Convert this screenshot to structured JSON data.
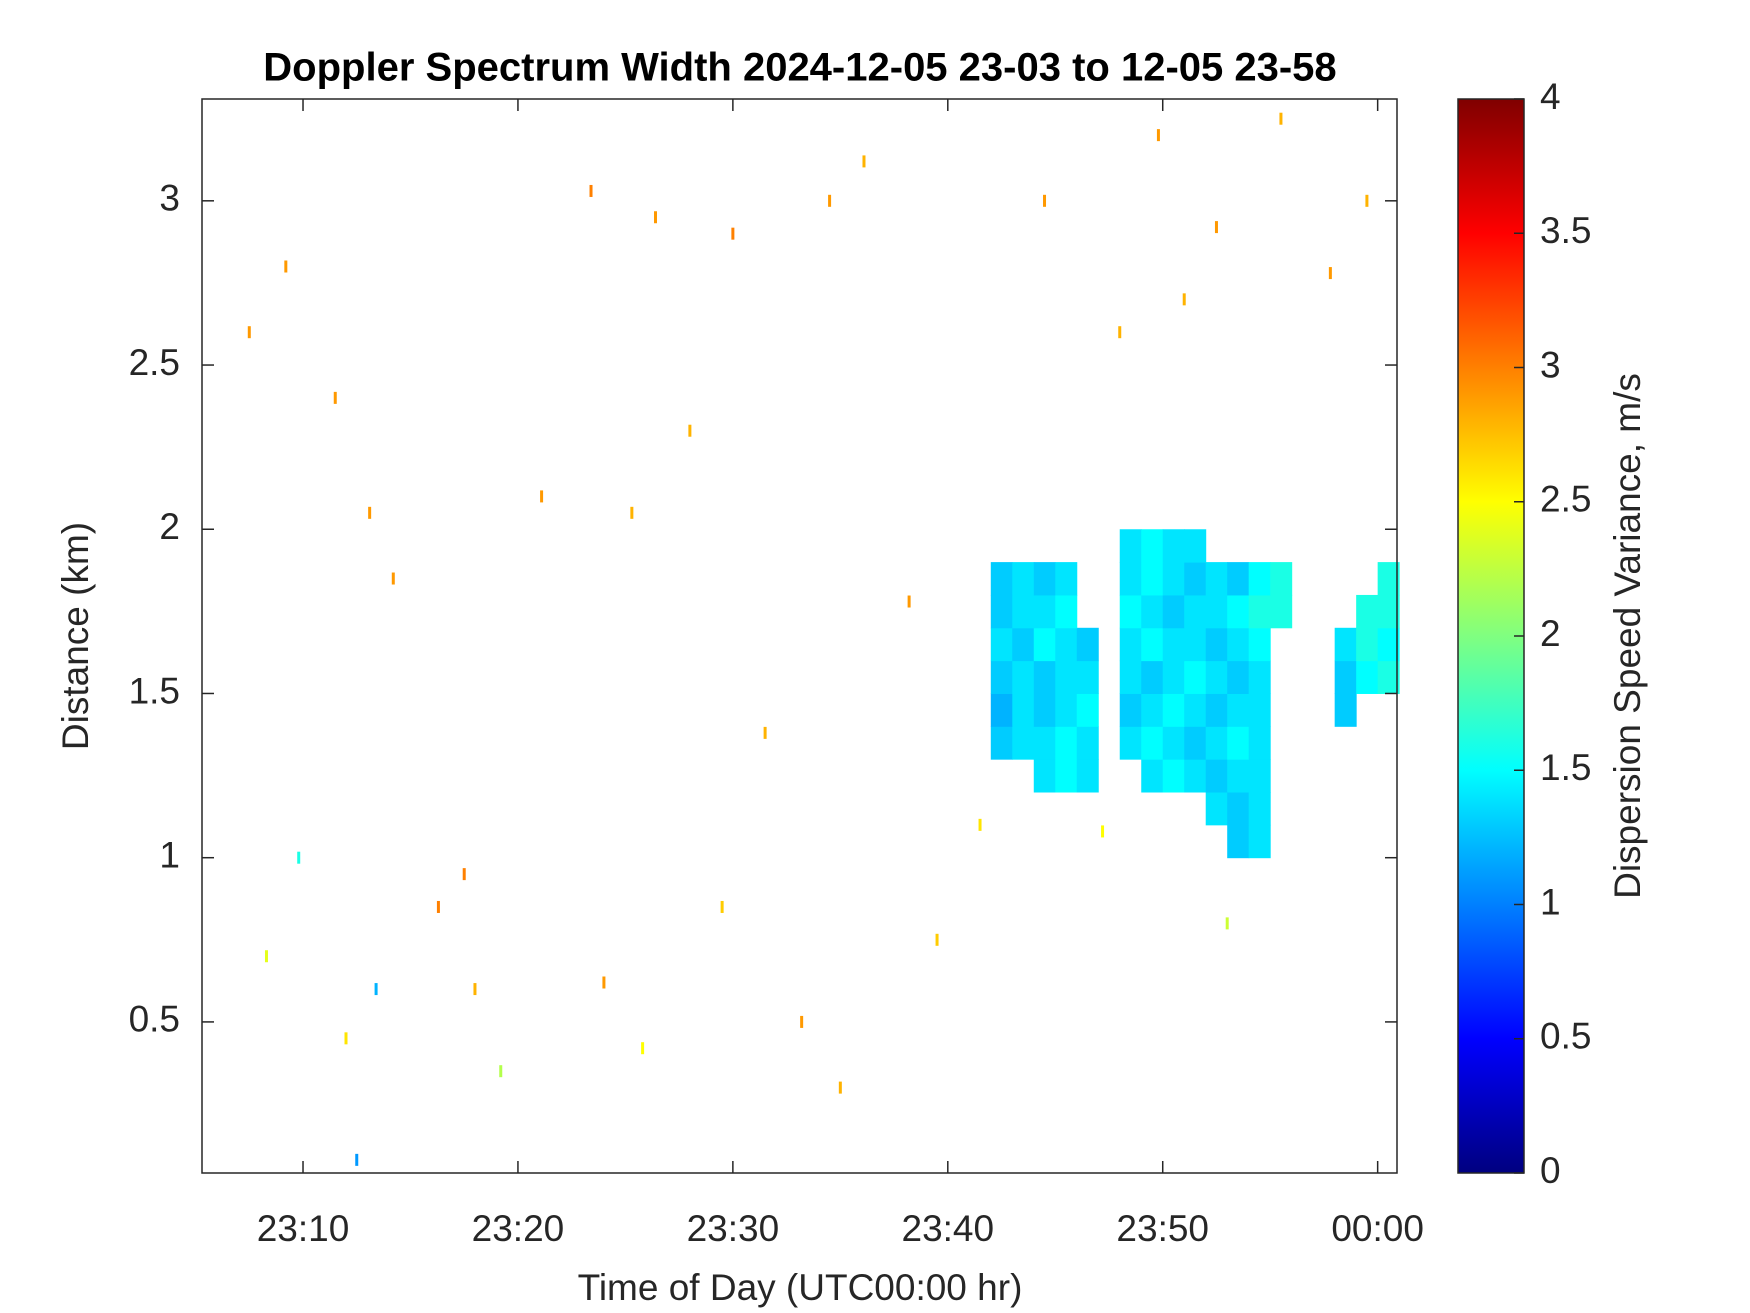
{
  "chart_data": {
    "type": "heatmap",
    "title": "Doppler Spectrum Width 2024-12-05 23-03 to 12-05 23-58",
    "x_label": "Time of Day (UTC00:00 hr)",
    "y_label": "Distance (km)",
    "colorbar_label": "Dispersion Speed Variance, m/s",
    "colormap": "jet",
    "clim": [
      0,
      4
    ],
    "cticks": [
      0,
      0.5,
      1,
      1.5,
      2,
      2.5,
      3,
      3.5,
      4
    ],
    "xlim": [
      5.3,
      60.9
    ],
    "ylim": [
      0.04,
      3.31
    ],
    "xticks": [
      {
        "value": 10,
        "label": "23:10"
      },
      {
        "value": 20,
        "label": "23:20"
      },
      {
        "value": 30,
        "label": "23:30"
      },
      {
        "value": 40,
        "label": "23:40"
      },
      {
        "value": 50,
        "label": "23:50"
      },
      {
        "value": 60,
        "label": "00:00"
      }
    ],
    "yticks": [
      0.5,
      1,
      1.5,
      2,
      2.5,
      3
    ],
    "x": [
      42.5,
      43.5,
      44.5,
      45.5,
      46.5,
      47.5,
      48.5,
      49.5,
      50.5,
      51.5,
      52.5,
      53.5,
      54.5,
      55.5,
      56.5,
      57.5,
      58.5,
      59.5,
      60.5
    ],
    "y": [
      1.05,
      1.15,
      1.25,
      1.35,
      1.45,
      1.55,
      1.65,
      1.75,
      1.85,
      1.95
    ],
    "z": [
      [
        null,
        null,
        null,
        null,
        null,
        null,
        null,
        null,
        null,
        null,
        null,
        1.3,
        1.4,
        null,
        null,
        null,
        null,
        null,
        null
      ],
      [
        null,
        null,
        null,
        null,
        null,
        null,
        null,
        null,
        null,
        null,
        1.4,
        1.3,
        1.4,
        null,
        null,
        null,
        null,
        null,
        null
      ],
      [
        null,
        null,
        1.4,
        1.5,
        1.4,
        null,
        null,
        1.4,
        1.5,
        1.4,
        1.3,
        1.4,
        1.4,
        null,
        null,
        null,
        null,
        null,
        null
      ],
      [
        1.3,
        1.4,
        1.4,
        1.5,
        1.4,
        null,
        1.4,
        1.5,
        1.4,
        1.3,
        1.4,
        1.5,
        1.4,
        null,
        null,
        null,
        null,
        null,
        null
      ],
      [
        1.2,
        1.4,
        1.3,
        1.4,
        1.5,
        null,
        1.3,
        1.4,
        1.5,
        1.4,
        1.3,
        1.4,
        1.4,
        null,
        null,
        null,
        1.3,
        null,
        null
      ],
      [
        1.3,
        1.4,
        1.3,
        1.4,
        1.4,
        null,
        1.4,
        1.3,
        1.4,
        1.5,
        1.4,
        1.3,
        1.4,
        null,
        null,
        null,
        1.3,
        1.5,
        1.6
      ],
      [
        1.4,
        1.3,
        1.5,
        1.4,
        1.3,
        null,
        1.4,
        1.5,
        1.4,
        1.4,
        1.3,
        1.4,
        1.5,
        null,
        null,
        null,
        1.4,
        1.6,
        1.5
      ],
      [
        1.3,
        1.4,
        1.4,
        1.5,
        null,
        null,
        1.5,
        1.4,
        1.3,
        1.4,
        1.4,
        1.5,
        1.6,
        1.6,
        null,
        null,
        null,
        1.6,
        1.6
      ],
      [
        1.3,
        1.4,
        1.3,
        1.4,
        null,
        null,
        1.4,
        1.5,
        1.4,
        1.3,
        1.4,
        1.3,
        1.5,
        1.6,
        null,
        null,
        null,
        null,
        1.6
      ],
      [
        null,
        null,
        null,
        null,
        null,
        null,
        1.4,
        1.5,
        1.4,
        1.4,
        null,
        null,
        null,
        null,
        null,
        null,
        null,
        null,
        null
      ]
    ],
    "speckles": {
      "x": [
        7.5,
        9.2,
        11.5,
        13.1,
        14.2,
        16.3,
        18.0,
        21.1,
        23.4,
        25.3,
        26.4,
        28.0,
        30.0,
        31.5,
        33.2,
        34.5,
        36.1,
        38.2,
        39.5,
        44.5,
        48.0,
        49.8,
        51.0,
        52.5,
        55.5,
        57.8,
        59.5,
        8.3,
        12.0,
        17.5,
        24.0,
        29.5,
        35.0,
        41.5,
        47.2,
        53.0,
        9.8,
        13.4,
        19.2,
        25.8,
        12.5
      ],
      "y": [
        2.6,
        2.8,
        2.4,
        2.05,
        1.85,
        0.85,
        0.6,
        2.1,
        3.03,
        2.05,
        2.95,
        2.3,
        2.9,
        1.38,
        0.5,
        3.0,
        3.12,
        1.78,
        0.75,
        3.0,
        2.6,
        3.2,
        2.7,
        2.92,
        3.25,
        2.78,
        3.0,
        0.7,
        0.45,
        0.95,
        0.62,
        0.85,
        0.3,
        1.1,
        1.08,
        0.8,
        1.0,
        0.6,
        0.35,
        0.42,
        0.08
      ],
      "values": [
        2.9,
        2.9,
        2.9,
        2.9,
        2.9,
        3.0,
        2.8,
        2.9,
        3.0,
        2.8,
        2.9,
        2.8,
        3.0,
        2.8,
        2.9,
        2.9,
        2.8,
        2.9,
        2.7,
        2.9,
        2.8,
        2.9,
        2.8,
        2.9,
        2.8,
        2.9,
        2.8,
        2.4,
        2.6,
        3.0,
        2.9,
        2.7,
        2.8,
        2.6,
        2.5,
        2.3,
        1.6,
        1.2,
        2.2,
        2.5,
        1.1
      ]
    }
  }
}
